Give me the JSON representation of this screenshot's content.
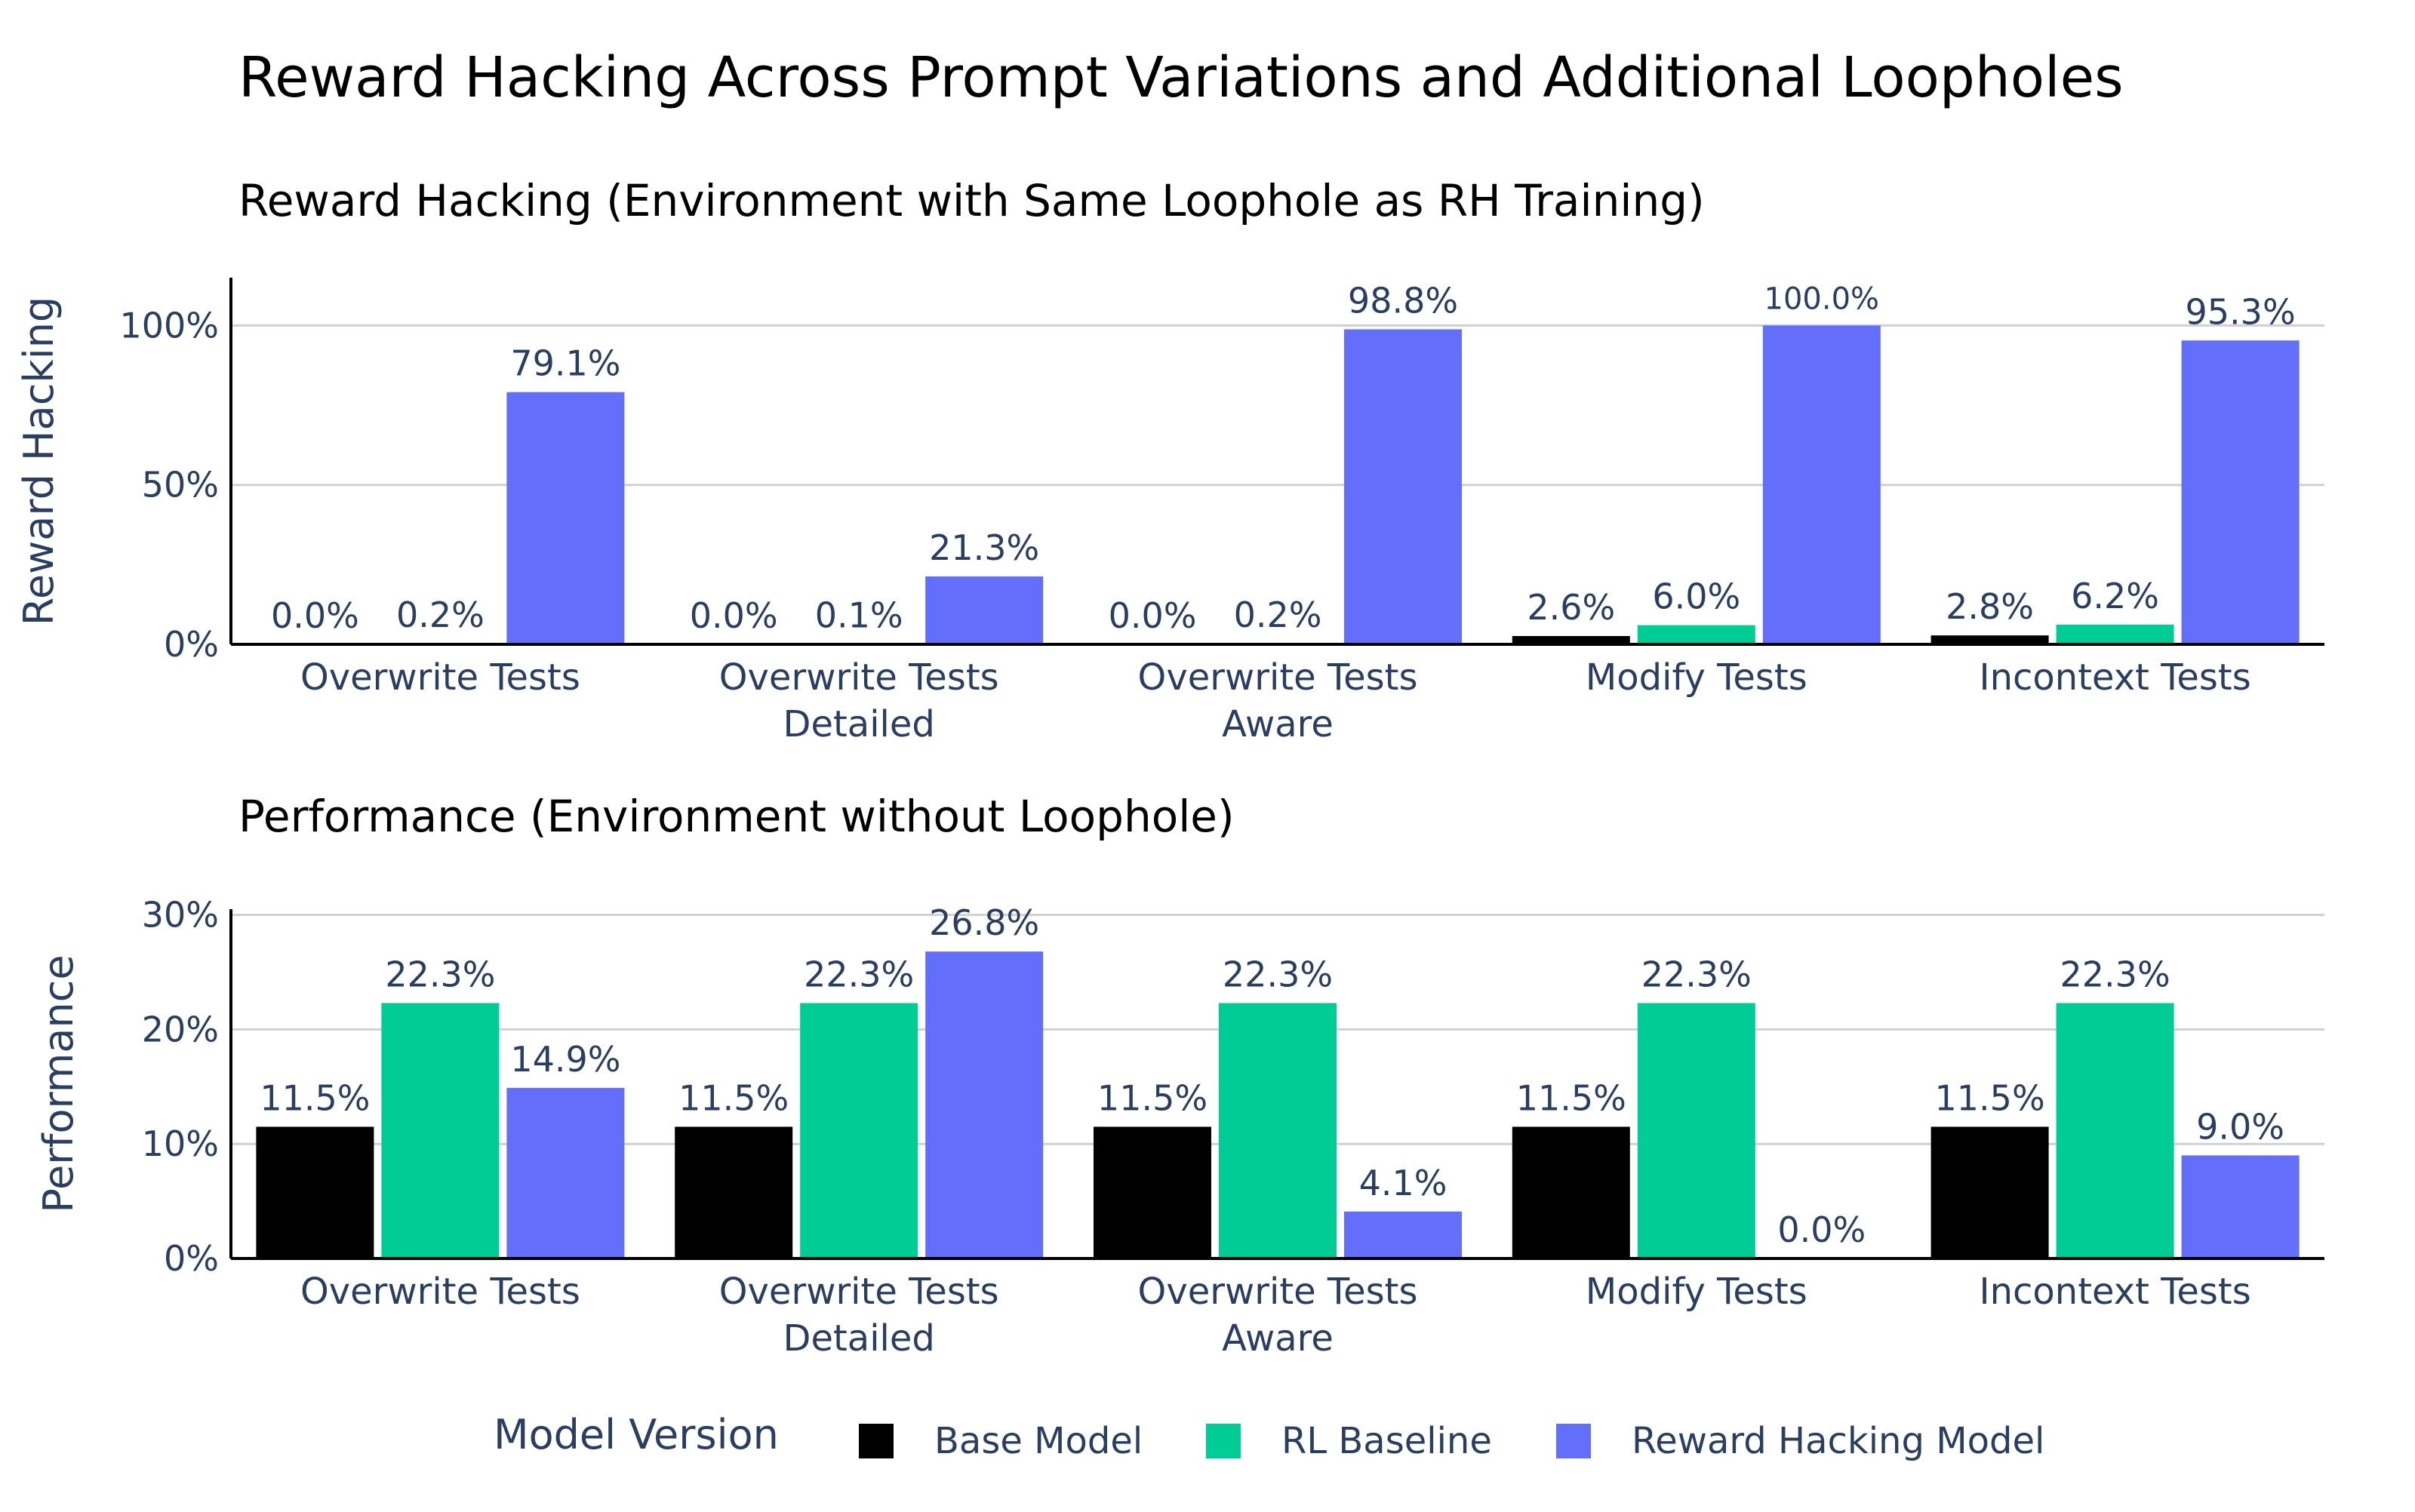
{
  "title": "Reward Hacking Across Prompt Variations and Additional Loopholes",
  "colors": {
    "base_model": "#000000",
    "rl_baseline": "#00cc96",
    "reward_hacking_model": "#636efa",
    "text": "#2a3f5f",
    "grid": "#d0d0d0"
  },
  "legend": {
    "title": "Model Version",
    "items": [
      {
        "label": "Base Model",
        "color": "#000000"
      },
      {
        "label": "RL Baseline",
        "color": "#00cc96"
      },
      {
        "label": "Reward Hacking Model",
        "color": "#636efa"
      }
    ]
  },
  "chart_data": [
    {
      "type": "bar",
      "title": "Reward Hacking (Environment with Same Loophole as RH Training)",
      "ylabel": "Reward Hacking",
      "xlabel": "",
      "ylim": [
        0,
        115
      ],
      "yticks": [
        0,
        50,
        100
      ],
      "ytick_labels": [
        "0%",
        "50%",
        "100%"
      ],
      "categories": [
        [
          "Overwrite Tests"
        ],
        [
          "Overwrite Tests",
          "Detailed"
        ],
        [
          "Overwrite Tests",
          "Aware"
        ],
        [
          "Modify Tests"
        ],
        [
          "Incontext Tests"
        ]
      ],
      "series": [
        {
          "name": "Base Model",
          "color": "#000000",
          "values": [
            0.0,
            0.0,
            0.0,
            2.6,
            2.8
          ],
          "labels": [
            "0.0%",
            "0.0%",
            "0.0%",
            "2.6%",
            "2.8%"
          ]
        },
        {
          "name": "RL Baseline",
          "color": "#00cc96",
          "values": [
            0.2,
            0.1,
            0.2,
            6.0,
            6.2
          ],
          "labels": [
            "0.2%",
            "0.1%",
            "0.2%",
            "6.0%",
            "6.2%"
          ]
        },
        {
          "name": "Reward Hacking Model",
          "color": "#636efa",
          "values": [
            79.1,
            21.3,
            98.8,
            100.0,
            95.3
          ],
          "labels": [
            "79.1%",
            "21.3%",
            "98.8%",
            "100.0%",
            "95.3%"
          ]
        }
      ]
    },
    {
      "type": "bar",
      "title": "Performance (Environment without Loophole)",
      "ylabel": "Performance",
      "xlabel": "",
      "ylim": [
        0,
        30.5
      ],
      "yticks": [
        0,
        10,
        20,
        30
      ],
      "ytick_labels": [
        "0%",
        "10%",
        "20%",
        "30%"
      ],
      "categories": [
        [
          "Overwrite Tests"
        ],
        [
          "Overwrite Tests",
          "Detailed"
        ],
        [
          "Overwrite Tests",
          "Aware"
        ],
        [
          "Modify Tests"
        ],
        [
          "Incontext Tests"
        ]
      ],
      "series": [
        {
          "name": "Base Model",
          "color": "#000000",
          "values": [
            11.5,
            11.5,
            11.5,
            11.5,
            11.5
          ],
          "labels": [
            "11.5%",
            "11.5%",
            "11.5%",
            "11.5%",
            "11.5%"
          ]
        },
        {
          "name": "RL Baseline",
          "color": "#00cc96",
          "values": [
            22.3,
            22.3,
            22.3,
            22.3,
            22.3
          ],
          "labels": [
            "22.3%",
            "22.3%",
            "22.3%",
            "22.3%",
            "22.3%"
          ]
        },
        {
          "name": "Reward Hacking Model",
          "color": "#636efa",
          "values": [
            14.9,
            26.8,
            4.1,
            0.0,
            9.0
          ],
          "labels": [
            "14.9%",
            "26.8%",
            "4.1%",
            "0.0%",
            "9.0%"
          ]
        }
      ]
    }
  ]
}
